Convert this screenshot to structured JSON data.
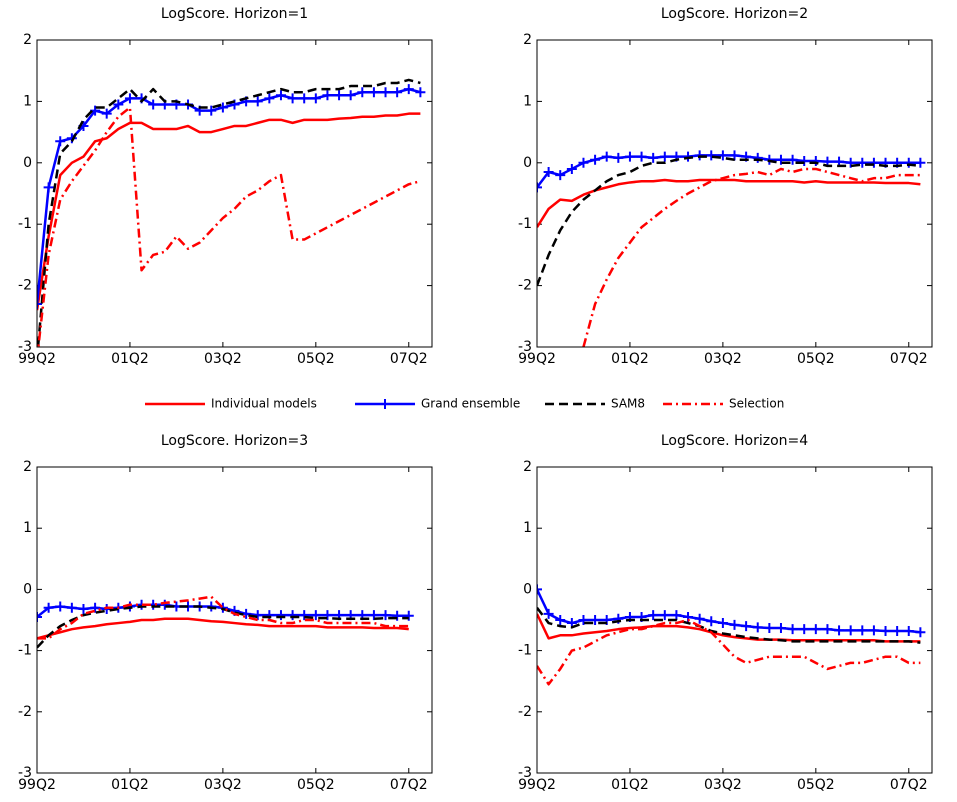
{
  "chart_data": [
    {
      "type": "line",
      "title": "LogScore. Horizon=1",
      "x": [
        0,
        1,
        2,
        3,
        4,
        5,
        6,
        7,
        8,
        9,
        10,
        11,
        12,
        13,
        14,
        15,
        16,
        17,
        18,
        19,
        20,
        21,
        22,
        23,
        24,
        25,
        26,
        27,
        28,
        29,
        30,
        31,
        32,
        33
      ],
      "xlim": [
        0,
        34
      ],
      "xticks": [
        {
          "value": 0,
          "label": "99Q2"
        },
        {
          "value": 8,
          "label": "01Q2"
        },
        {
          "value": 16,
          "label": "03Q2"
        },
        {
          "value": 24,
          "label": "05Q2"
        },
        {
          "value": 32,
          "label": "07Q2"
        }
      ],
      "ylim": [
        -3,
        2
      ],
      "yticks": [
        -3,
        -2,
        -1,
        0,
        1,
        2
      ],
      "series": [
        {
          "name": "Individual models",
          "color": "#ff0000",
          "style": "solid",
          "values": [
            -2.4,
            -1.2,
            -0.2,
            0.0,
            0.1,
            0.35,
            0.4,
            0.55,
            0.65,
            0.65,
            0.55,
            0.55,
            0.55,
            0.6,
            0.5,
            0.5,
            0.55,
            0.6,
            0.6,
            0.65,
            0.7,
            0.7,
            0.65,
            0.7,
            0.7,
            0.7,
            0.72,
            0.73,
            0.75,
            0.75,
            0.77,
            0.77,
            0.8,
            0.8
          ]
        },
        {
          "name": "Grand ensemble",
          "color": "#0000ff",
          "style": "solid",
          "marker": "+",
          "values": [
            -2.3,
            -0.4,
            0.35,
            0.4,
            0.6,
            0.85,
            0.8,
            0.95,
            1.05,
            1.05,
            0.95,
            0.95,
            0.95,
            0.95,
            0.85,
            0.85,
            0.9,
            0.95,
            1.0,
            1.0,
            1.05,
            1.1,
            1.05,
            1.05,
            1.05,
            1.1,
            1.1,
            1.1,
            1.15,
            1.15,
            1.15,
            1.15,
            1.2,
            1.15
          ]
        },
        {
          "name": "SAM8",
          "color": "#000000",
          "style": "dashed",
          "values": [
            -3.2,
            -1.0,
            0.15,
            0.35,
            0.7,
            0.9,
            0.9,
            1.05,
            1.2,
            1.0,
            1.2,
            1.0,
            1.0,
            0.95,
            0.9,
            0.9,
            0.95,
            1.0,
            1.05,
            1.1,
            1.15,
            1.2,
            1.15,
            1.15,
            1.2,
            1.2,
            1.2,
            1.25,
            1.25,
            1.25,
            1.3,
            1.3,
            1.35,
            1.3
          ]
        },
        {
          "name": "Selection",
          "color": "#ff0000",
          "style": "dashdot",
          "values": [
            -3.2,
            -1.5,
            -0.6,
            -0.3,
            -0.05,
            0.2,
            0.5,
            0.75,
            0.9,
            -1.75,
            -1.5,
            -1.45,
            -1.2,
            -1.4,
            -1.3,
            -1.1,
            -0.9,
            -0.75,
            -0.55,
            -0.45,
            -0.3,
            -0.2,
            -1.25,
            -1.25,
            -1.15,
            -1.05,
            -0.95,
            -0.85,
            -0.75,
            -0.65,
            -0.55,
            -0.45,
            -0.35,
            -0.3
          ]
        }
      ]
    },
    {
      "type": "line",
      "title": "LogScore. Horizon=2",
      "x": [
        0,
        1,
        2,
        3,
        4,
        5,
        6,
        7,
        8,
        9,
        10,
        11,
        12,
        13,
        14,
        15,
        16,
        17,
        18,
        19,
        20,
        21,
        22,
        23,
        24,
        25,
        26,
        27,
        28,
        29,
        30,
        31,
        32,
        33
      ],
      "xlim": [
        0,
        34
      ],
      "xticks": [
        {
          "value": 0,
          "label": "99Q2"
        },
        {
          "value": 8,
          "label": "01Q2"
        },
        {
          "value": 16,
          "label": "03Q2"
        },
        {
          "value": 24,
          "label": "05Q2"
        },
        {
          "value": 32,
          "label": "07Q2"
        }
      ],
      "ylim": [
        -3,
        2
      ],
      "yticks": [
        -3,
        -2,
        -1,
        0,
        1,
        2
      ],
      "series": [
        {
          "name": "Individual models",
          "color": "#ff0000",
          "style": "solid",
          "values": [
            -1.05,
            -0.75,
            -0.6,
            -0.62,
            -0.52,
            -0.45,
            -0.4,
            -0.35,
            -0.32,
            -0.3,
            -0.3,
            -0.28,
            -0.3,
            -0.3,
            -0.28,
            -0.28,
            -0.28,
            -0.28,
            -0.3,
            -0.3,
            -0.3,
            -0.3,
            -0.3,
            -0.32,
            -0.3,
            -0.32,
            -0.32,
            -0.32,
            -0.32,
            -0.32,
            -0.33,
            -0.33,
            -0.33,
            -0.35
          ]
        },
        {
          "name": "Grand ensemble",
          "color": "#0000ff",
          "style": "solid",
          "marker": "+",
          "values": [
            -0.4,
            -0.15,
            -0.2,
            -0.1,
            0.0,
            0.05,
            0.1,
            0.08,
            0.1,
            0.1,
            0.08,
            0.1,
            0.1,
            0.1,
            0.12,
            0.12,
            0.12,
            0.12,
            0.1,
            0.08,
            0.05,
            0.05,
            0.05,
            0.03,
            0.03,
            0.02,
            0.02,
            0.0,
            0.0,
            0.0,
            0.0,
            0.0,
            0.0,
            0.0
          ]
        },
        {
          "name": "SAM8",
          "color": "#000000",
          "style": "dashed",
          "values": [
            -2.0,
            -1.5,
            -1.1,
            -0.8,
            -0.6,
            -0.45,
            -0.3,
            -0.2,
            -0.15,
            -0.05,
            0.0,
            0.0,
            0.05,
            0.08,
            0.1,
            0.1,
            0.08,
            0.05,
            0.05,
            0.05,
            0.03,
            0.0,
            0.0,
            0.0,
            0.0,
            -0.05,
            -0.05,
            -0.05,
            -0.03,
            -0.03,
            -0.05,
            -0.05,
            -0.03,
            -0.05
          ]
        },
        {
          "name": "Selection",
          "color": "#ff0000",
          "style": "dashdot",
          "values": [
            null,
            null,
            null,
            null,
            -3.0,
            -2.3,
            -1.9,
            -1.55,
            -1.3,
            -1.05,
            -0.9,
            -0.75,
            -0.62,
            -0.5,
            -0.4,
            -0.3,
            -0.25,
            -0.2,
            -0.18,
            -0.15,
            -0.2,
            -0.1,
            -0.15,
            -0.1,
            -0.1,
            -0.15,
            -0.2,
            -0.25,
            -0.3,
            -0.25,
            -0.25,
            -0.2,
            -0.2,
            -0.2
          ]
        }
      ]
    },
    {
      "type": "line",
      "title": "LogScore. Horizon=3",
      "x": [
        0,
        1,
        2,
        3,
        4,
        5,
        6,
        7,
        8,
        9,
        10,
        11,
        12,
        13,
        14,
        15,
        16,
        17,
        18,
        19,
        20,
        21,
        22,
        23,
        24,
        25,
        26,
        27,
        28,
        29,
        30,
        31,
        32
      ],
      "xlim": [
        0,
        34
      ],
      "xticks": [
        {
          "value": 0,
          "label": "99Q2"
        },
        {
          "value": 8,
          "label": "01Q2"
        },
        {
          "value": 16,
          "label": "03Q2"
        },
        {
          "value": 24,
          "label": "05Q2"
        },
        {
          "value": 32,
          "label": "07Q2"
        }
      ],
      "ylim": [
        -3,
        2
      ],
      "yticks": [
        -3,
        -2,
        -1,
        0,
        1,
        2
      ],
      "series": [
        {
          "name": "Individual models",
          "color": "#ff0000",
          "style": "solid",
          "values": [
            -0.8,
            -0.75,
            -0.7,
            -0.65,
            -0.62,
            -0.6,
            -0.57,
            -0.55,
            -0.53,
            -0.5,
            -0.5,
            -0.48,
            -0.48,
            -0.48,
            -0.5,
            -0.52,
            -0.53,
            -0.55,
            -0.57,
            -0.58,
            -0.6,
            -0.6,
            -0.6,
            -0.6,
            -0.6,
            -0.62,
            -0.62,
            -0.62,
            -0.62,
            -0.63,
            -0.63,
            -0.63,
            -0.65
          ]
        },
        {
          "name": "Grand ensemble",
          "color": "#0000ff",
          "style": "solid",
          "marker": "+",
          "values": [
            -0.45,
            -0.3,
            -0.28,
            -0.3,
            -0.32,
            -0.3,
            -0.32,
            -0.3,
            -0.28,
            -0.25,
            -0.25,
            -0.25,
            -0.28,
            -0.28,
            -0.28,
            -0.28,
            -0.3,
            -0.35,
            -0.4,
            -0.42,
            -0.42,
            -0.42,
            -0.42,
            -0.42,
            -0.42,
            -0.42,
            -0.42,
            -0.42,
            -0.42,
            -0.42,
            -0.42,
            -0.43,
            -0.43
          ]
        },
        {
          "name": "SAM8",
          "color": "#000000",
          "style": "dashed",
          "values": [
            -0.95,
            -0.75,
            -0.6,
            -0.5,
            -0.42,
            -0.38,
            -0.35,
            -0.32,
            -0.3,
            -0.28,
            -0.28,
            -0.28,
            -0.28,
            -0.28,
            -0.28,
            -0.3,
            -0.32,
            -0.38,
            -0.42,
            -0.45,
            -0.45,
            -0.45,
            -0.45,
            -0.45,
            -0.47,
            -0.47,
            -0.48,
            -0.48,
            -0.48,
            -0.48,
            -0.47,
            -0.47,
            -0.47
          ]
        },
        {
          "name": "Selection",
          "color": "#ff0000",
          "style": "dashdot",
          "values": [
            -0.8,
            -0.8,
            -0.65,
            -0.55,
            -0.4,
            -0.35,
            -0.3,
            -0.3,
            -0.25,
            -0.25,
            -0.25,
            -0.22,
            -0.2,
            -0.18,
            -0.15,
            -0.12,
            -0.3,
            -0.4,
            -0.45,
            -0.5,
            -0.5,
            -0.55,
            -0.55,
            -0.5,
            -0.5,
            -0.55,
            -0.55,
            -0.55,
            -0.55,
            -0.55,
            -0.6,
            -0.6,
            -0.6
          ]
        }
      ]
    },
    {
      "type": "line",
      "title": "LogScore. Horizon=4",
      "x": [
        0,
        1,
        2,
        3,
        4,
        5,
        6,
        7,
        8,
        9,
        10,
        11,
        12,
        13,
        14,
        15,
        16,
        17,
        18,
        19,
        20,
        21,
        22,
        23,
        24,
        25,
        26,
        27,
        28,
        29,
        30,
        31,
        32,
        33
      ],
      "xlim": [
        0,
        34
      ],
      "xticks": [
        {
          "value": 0,
          "label": "99Q2"
        },
        {
          "value": 8,
          "label": "01Q2"
        },
        {
          "value": 16,
          "label": "03Q2"
        },
        {
          "value": 24,
          "label": "05Q2"
        },
        {
          "value": 32,
          "label": "07Q2"
        }
      ],
      "ylim": [
        -3,
        2
      ],
      "yticks": [
        -3,
        -2,
        -1,
        0,
        1,
        2
      ],
      "series": [
        {
          "name": "Individual models",
          "color": "#ff0000",
          "style": "solid",
          "values": [
            -0.4,
            -0.8,
            -0.75,
            -0.75,
            -0.72,
            -0.7,
            -0.68,
            -0.65,
            -0.63,
            -0.62,
            -0.6,
            -0.6,
            -0.6,
            -0.62,
            -0.65,
            -0.7,
            -0.75,
            -0.78,
            -0.8,
            -0.82,
            -0.82,
            -0.82,
            -0.83,
            -0.83,
            -0.83,
            -0.83,
            -0.83,
            -0.83,
            -0.83,
            -0.83,
            -0.85,
            -0.85,
            -0.85,
            -0.85
          ]
        },
        {
          "name": "Grand ensemble",
          "color": "#0000ff",
          "style": "solid",
          "marker": "+",
          "values": [
            0.0,
            -0.4,
            -0.5,
            -0.55,
            -0.5,
            -0.5,
            -0.5,
            -0.48,
            -0.45,
            -0.45,
            -0.42,
            -0.42,
            -0.42,
            -0.45,
            -0.48,
            -0.52,
            -0.55,
            -0.58,
            -0.6,
            -0.62,
            -0.63,
            -0.63,
            -0.65,
            -0.65,
            -0.65,
            -0.65,
            -0.67,
            -0.67,
            -0.67,
            -0.67,
            -0.68,
            -0.68,
            -0.68,
            -0.7
          ]
        },
        {
          "name": "SAM8",
          "color": "#000000",
          "style": "dashed",
          "values": [
            -0.3,
            -0.55,
            -0.6,
            -0.62,
            -0.55,
            -0.55,
            -0.55,
            -0.52,
            -0.5,
            -0.5,
            -0.5,
            -0.5,
            -0.5,
            -0.55,
            -0.6,
            -0.68,
            -0.72,
            -0.75,
            -0.78,
            -0.8,
            -0.82,
            -0.83,
            -0.85,
            -0.85,
            -0.85,
            -0.85,
            -0.85,
            -0.85,
            -0.85,
            -0.85,
            -0.85,
            -0.85,
            -0.85,
            -0.87
          ]
        },
        {
          "name": "Selection",
          "color": "#ff0000",
          "style": "dashdot",
          "values": [
            -1.25,
            -1.55,
            -1.3,
            -1.0,
            -0.95,
            -0.85,
            -0.75,
            -0.7,
            -0.65,
            -0.65,
            -0.6,
            -0.55,
            -0.55,
            -0.5,
            -0.6,
            -0.7,
            -0.9,
            -1.1,
            -1.2,
            -1.15,
            -1.1,
            -1.1,
            -1.1,
            -1.1,
            -1.2,
            -1.3,
            -1.25,
            -1.2,
            -1.2,
            -1.15,
            -1.1,
            -1.1,
            -1.2,
            -1.2
          ]
        }
      ]
    }
  ]
}
